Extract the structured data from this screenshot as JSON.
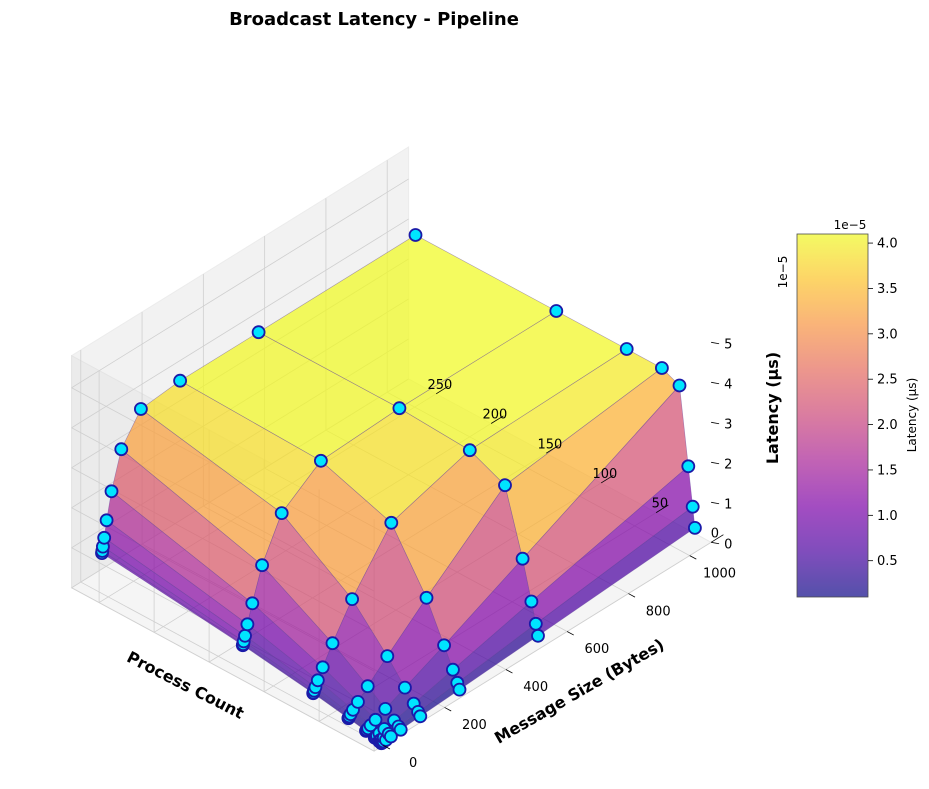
{
  "chart_data": {
    "type": "surface3d",
    "title": "Broadcast Latency - Pipeline",
    "xlabel": "Process Count",
    "ylabel": "Message Size (Bytes)",
    "zlabel": "Latency (µs)",
    "z_offset_text": "1e−5",
    "colorbar": {
      "label": "Latency (µs)",
      "offset_text": "1e−5",
      "range": [
        0.1,
        4.1
      ],
      "ticks": [
        "0.5",
        "1.0",
        "1.5",
        "2.0",
        "2.5",
        "3.0",
        "3.5",
        "4.0"
      ],
      "colormap": "plasma"
    },
    "x_ticks": [
      "0",
      "50",
      "100",
      "150",
      "200",
      "250"
    ],
    "y_ticks": [
      "0",
      "200",
      "400",
      "600",
      "800",
      "1000"
    ],
    "z_ticks": [
      "0",
      "1",
      "2",
      "3",
      "4",
      "5"
    ],
    "x_range": [
      0,
      275
    ],
    "y_range": [
      -30,
      1070
    ],
    "z_range": [
      0,
      5.8
    ],
    "process_counts": [
      2,
      4,
      8,
      16,
      32,
      64,
      128,
      256
    ],
    "message_sizes": [
      1,
      2,
      4,
      8,
      16,
      32,
      64,
      128,
      256,
      512,
      1024
    ],
    "latency_e5": [
      [
        0.02,
        0.02,
        0.02,
        0.03,
        0.03,
        0.04,
        0.06,
        0.09,
        0.15,
        0.28,
        0.55
      ],
      [
        0.04,
        0.04,
        0.05,
        0.05,
        0.06,
        0.08,
        0.11,
        0.17,
        0.29,
        0.55,
        1.05
      ],
      [
        0.07,
        0.07,
        0.08,
        0.09,
        0.11,
        0.14,
        0.2,
        0.32,
        0.56,
        1.05,
        2.0
      ],
      [
        0.12,
        0.12,
        0.13,
        0.15,
        0.19,
        0.25,
        0.37,
        0.6,
        1.05,
        2.0,
        3.9
      ],
      [
        0.2,
        0.21,
        0.23,
        0.27,
        0.34,
        0.46,
        0.7,
        1.15,
        2.0,
        3.6,
        4.1
      ],
      [
        0.35,
        0.36,
        0.4,
        0.47,
        0.6,
        0.85,
        1.3,
        2.1,
        3.4,
        4.0,
        4.1
      ],
      [
        0.6,
        0.62,
        0.68,
        0.8,
        1.05,
        1.5,
        2.3,
        3.3,
        4.0,
        4.1,
        4.1
      ],
      [
        1.0,
        1.05,
        1.15,
        1.35,
        1.75,
        2.4,
        3.3,
        4.0,
        4.1,
        4.1,
        4.1
      ]
    ]
  }
}
